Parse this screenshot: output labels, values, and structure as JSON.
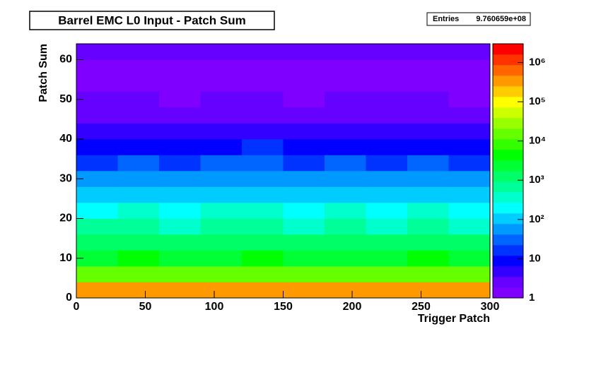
{
  "chart_data": {
    "type": "heatmap",
    "title": "Barrel EMC L0 Input - Patch Sum",
    "stats_label": "Entries",
    "stats_value": "9.760659e+08",
    "x_label": "Trigger Patch",
    "y_label": "Patch Sum",
    "xbins": [
      0,
      30,
      60,
      90,
      120,
      150,
      180,
      210,
      240,
      270,
      300
    ],
    "ybins": [
      0,
      4,
      8,
      12,
      16,
      20,
      24,
      28,
      32,
      36,
      40,
      44,
      48,
      52,
      56,
      60,
      64
    ],
    "values": [
      [
        280000,
        310000,
        295000,
        320000,
        300000,
        290000,
        305000,
        315000,
        285000,
        300000
      ],
      [
        12000,
        13000,
        11500,
        12500,
        13500,
        12000,
        12800,
        11800,
        13200,
        12200
      ],
      [
        3000,
        3300,
        2900,
        3100,
        3400,
        2800,
        3200,
        3000,
        3300,
        2900
      ],
      [
        1100,
        1200,
        1000,
        1150,
        1250,
        950,
        1180,
        1050,
        1220,
        1000
      ],
      [
        500,
        560,
        470,
        520,
        580,
        450,
        540,
        490,
        570,
        480
      ],
      [
        260,
        300,
        240,
        280,
        310,
        230,
        290,
        250,
        300,
        240
      ],
      [
        110,
        130,
        100,
        120,
        140,
        95,
        125,
        105,
        135,
        100
      ],
      [
        50,
        60,
        45,
        55,
        62,
        42,
        58,
        48,
        60,
        46
      ],
      [
        22,
        26,
        19,
        24,
        27,
        18,
        25,
        21,
        26,
        20
      ],
      [
        10,
        12,
        9,
        11,
        13,
        8,
        12,
        10,
        12,
        9
      ],
      [
        5,
        6,
        4,
        5,
        6,
        4,
        6,
        5,
        6,
        4
      ],
      [
        3,
        3,
        2,
        3,
        3,
        2,
        3,
        3,
        3,
        2
      ],
      [
        2,
        2,
        1.5,
        2,
        2,
        1.5,
        2,
        2,
        2,
        1.5
      ],
      [
        1.5,
        1.5,
        1.2,
        1.4,
        1.6,
        1.2,
        1.5,
        1.3,
        1.5,
        1.2
      ],
      [
        1.2,
        1.3,
        1.1,
        1.2,
        1.3,
        1.1,
        1.2,
        1.1,
        1.3,
        1.1
      ],
      [
        2.5,
        2.6,
        2.4,
        2.5,
        2.6,
        2.4,
        2.5,
        2.5,
        2.6,
        2.4
      ]
    ],
    "xlim": [
      0,
      300
    ],
    "ylim": [
      0,
      64
    ],
    "zlim": [
      1,
      3000000
    ],
    "zlog": true,
    "xticks": [
      0,
      50,
      100,
      150,
      200,
      250,
      300
    ],
    "yticks": [
      0,
      10,
      20,
      30,
      40,
      50,
      60
    ],
    "zticks": [
      1,
      10,
      {
        "value": 100,
        "label": "10²"
      },
      {
        "value": 1000,
        "label": "10³"
      },
      {
        "value": 10000,
        "label": "10⁴"
      },
      {
        "value": 100000,
        "label": "10⁵"
      },
      {
        "value": 1000000,
        "label": "10⁶"
      }
    ],
    "palette": [
      "#8000ff",
      "#6600ff",
      "#3300ff",
      "#0000ff",
      "#0033ff",
      "#0066ff",
      "#0099ff",
      "#00ccff",
      "#00ffff",
      "#00ffcc",
      "#00ff99",
      "#00ff66",
      "#00ff33",
      "#00ff00",
      "#33ff00",
      "#66ff00",
      "#99ff00",
      "#ccff00",
      "#ffff00",
      "#ffcc00",
      "#ff9900",
      "#ff6600",
      "#ff3300",
      "#ff0000"
    ]
  }
}
